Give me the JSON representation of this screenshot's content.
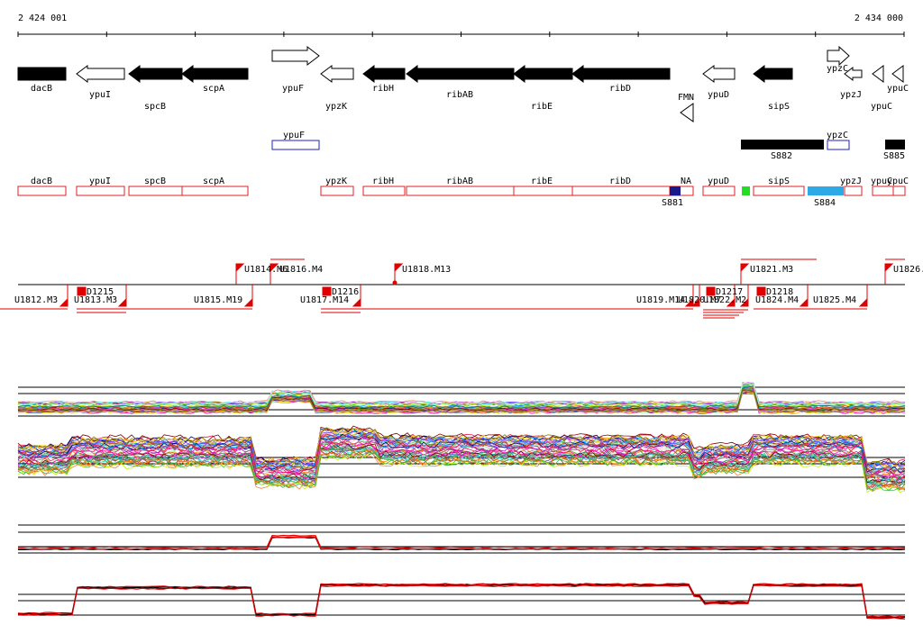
{
  "coordinates": {
    "start": "2 424 001",
    "end": "2 434 000"
  },
  "genes": [
    {
      "label": "dacB",
      "fill": "black",
      "dir": "+"
    },
    {
      "label": "ypuI",
      "fill": "white",
      "dir": "-"
    },
    {
      "label": "spcB",
      "fill": "black",
      "dir": "-"
    },
    {
      "label": "scpA",
      "fill": "black",
      "dir": "-"
    },
    {
      "label": "ypuF",
      "fill": "white",
      "dir": "+"
    },
    {
      "label": "ypzK",
      "fill": "white",
      "dir": "-"
    },
    {
      "label": "ribH",
      "fill": "black",
      "dir": "-"
    },
    {
      "label": "ribAB",
      "fill": "black",
      "dir": "-"
    },
    {
      "label": "ribE",
      "fill": "black",
      "dir": "-"
    },
    {
      "label": "ribD",
      "fill": "black",
      "dir": "-"
    },
    {
      "label": "FMN",
      "fill": "white",
      "dir": "-"
    },
    {
      "label": "ypuD",
      "fill": "white",
      "dir": "-"
    },
    {
      "label": "sipS",
      "fill": "black",
      "dir": "-"
    },
    {
      "label": "ypzC",
      "fill": "white",
      "dir": "+"
    },
    {
      "label": "ypzJ",
      "fill": "white",
      "dir": "-"
    },
    {
      "label": "ypuC",
      "fill": "white",
      "dir": "-"
    },
    {
      "label": "ypuC",
      "fill": "white",
      "dir": "-"
    }
  ],
  "features": [
    {
      "label": "ypuF"
    },
    {
      "label": "ypzC"
    },
    {
      "label": "S882"
    },
    {
      "label": "S885"
    }
  ],
  "segments": [
    {
      "label": "dacB"
    },
    {
      "label": "ypuI"
    },
    {
      "label": "spcB"
    },
    {
      "label": "scpA"
    },
    {
      "label": "ypzK"
    },
    {
      "label": "ribH"
    },
    {
      "label": "ribAB"
    },
    {
      "label": "ribE"
    },
    {
      "label": "ribD"
    },
    {
      "label": "NA"
    },
    {
      "label": "S881"
    },
    {
      "label": "ypuD"
    },
    {
      "label": "sipS"
    },
    {
      "label": "ypzJ"
    },
    {
      "label": "S884"
    },
    {
      "label": "ypuC"
    },
    {
      "label": "ypuC"
    }
  ],
  "transcripts_top": [
    {
      "label": "U1814.M6"
    },
    {
      "label": "U1816.M4"
    },
    {
      "label": "U1818.M13"
    },
    {
      "label": "U1821.M3"
    },
    {
      "label": "U1826."
    }
  ],
  "transcripts_bottom": [
    {
      "label": "U1812.M3"
    },
    {
      "label": "D1215"
    },
    {
      "label": "U1813.M3"
    },
    {
      "label": "U1815.M19"
    },
    {
      "label": "D1216"
    },
    {
      "label": "U1817.M14"
    },
    {
      "label": "U1819.M14"
    },
    {
      "label": "U1820.M7"
    },
    {
      "label": "D1217"
    },
    {
      "label": "U1822.M2"
    },
    {
      "label": "D1218"
    },
    {
      "label": "U1824.M4"
    },
    {
      "label": "U1825.M4"
    }
  ],
  "colors": {
    "gene_fill": "#000000",
    "segment_stroke": "#e02020",
    "feature_stroke": "#2020c0",
    "s881": "#1a1a8c",
    "s884": "#2fa8e8",
    "green_marker": "#22dd22",
    "transcript": "#e00000"
  }
}
